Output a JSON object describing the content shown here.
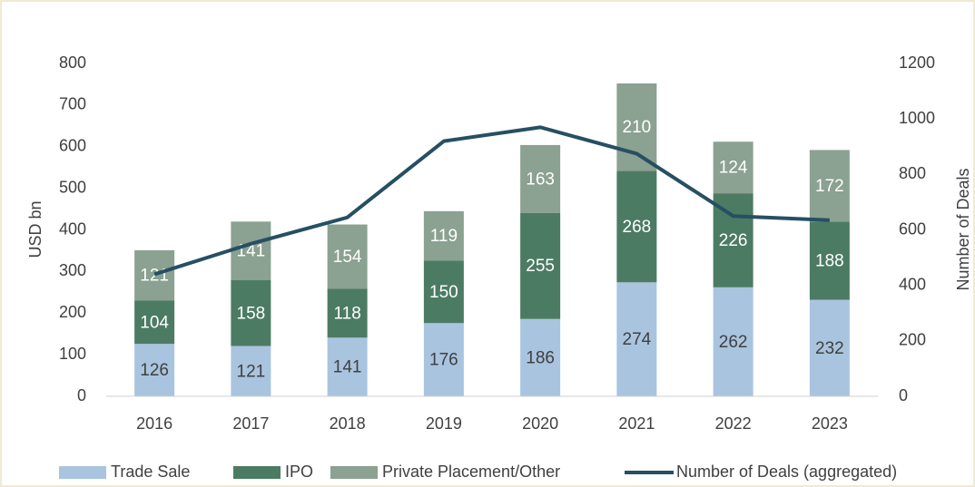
{
  "chart_data": {
    "type": "bar",
    "stacked": true,
    "categories": [
      "2016",
      "2017",
      "2018",
      "2019",
      "2020",
      "2021",
      "2022",
      "2023"
    ],
    "y_label": "USD bn",
    "y2_label": "Number of Deals",
    "ylim": [
      0,
      800
    ],
    "yticks": [
      0,
      100,
      200,
      300,
      400,
      500,
      600,
      700,
      800
    ],
    "y2lim": [
      0,
      1200
    ],
    "y2ticks": [
      0,
      200,
      400,
      600,
      800,
      1000,
      1200
    ],
    "series": [
      {
        "name": "Trade Sale",
        "type": "bar",
        "color": "#a9c4de",
        "values": [
          126,
          121,
          141,
          176,
          186,
          274,
          262,
          232
        ]
      },
      {
        "name": "IPO",
        "type": "bar",
        "color": "#4c7b64",
        "values": [
          104,
          158,
          118,
          150,
          255,
          268,
          226,
          188
        ]
      },
      {
        "name": "Private Placement/Other",
        "type": "bar",
        "color": "#8ba191",
        "values": [
          121,
          141,
          154,
          119,
          163,
          210,
          124,
          172
        ]
      },
      {
        "name": "Number of Deals (aggregated)",
        "type": "line",
        "axis": "y2",
        "color": "#264f63",
        "values": [
          440,
          550,
          645,
          920,
          970,
          875,
          650,
          635
        ]
      }
    ],
    "legend": "bottom"
  }
}
